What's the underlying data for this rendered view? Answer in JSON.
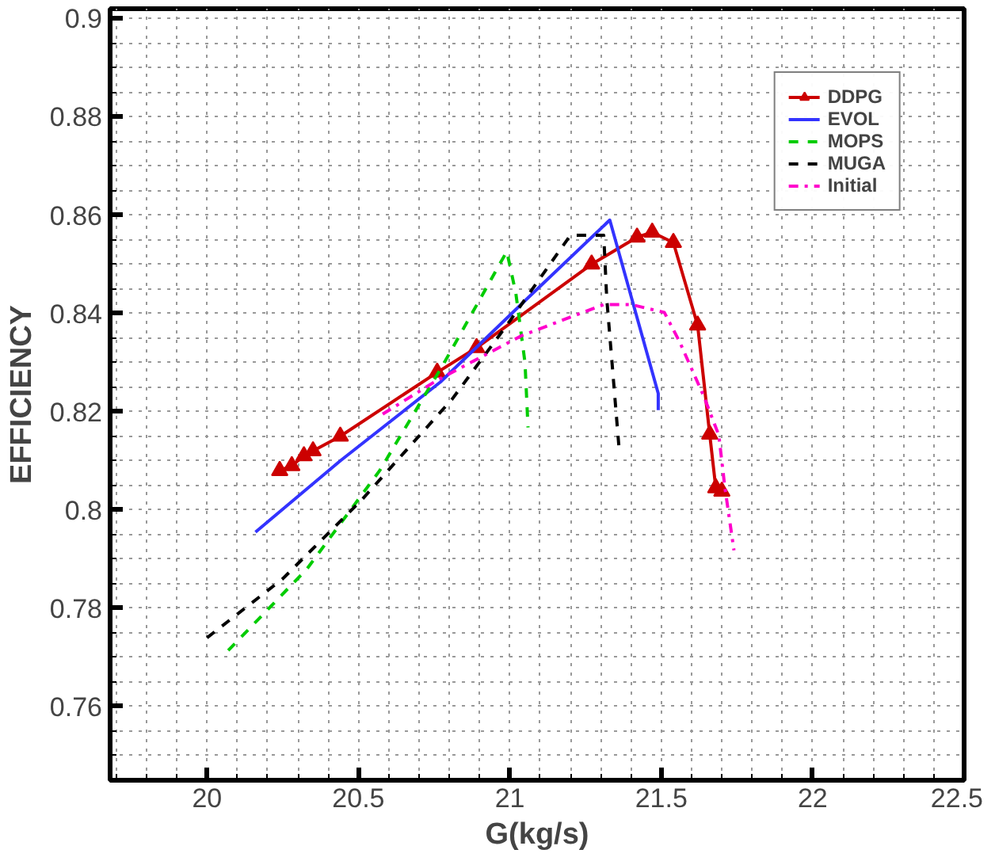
{
  "chart_data": {
    "type": "line",
    "xlabel": "G(kg/s)",
    "ylabel": "EFFICIENCY",
    "xlim": [
      19.68,
      22.5
    ],
    "ylim": [
      0.745,
      0.902
    ],
    "xticks": [
      20,
      20.5,
      21,
      21.5,
      22,
      22.5
    ],
    "yticks": [
      0.76,
      0.78,
      {
        "value": 0.8,
        "label": "0.8"
      },
      0.82,
      0.84,
      0.86,
      0.88,
      {
        "value": 0.9,
        "label": "0.9"
      }
    ],
    "grid": true,
    "legend": "top right",
    "series": [
      {
        "name": "DDPG",
        "color": "#cc0000",
        "marker": "triangle",
        "line_style": "solid",
        "x": [
          20.24,
          20.28,
          20.32,
          20.35,
          20.44,
          20.76,
          20.89,
          21.27,
          21.42,
          21.47,
          21.54,
          21.62,
          21.66,
          21.68,
          21.7
        ],
        "values": [
          0.808,
          0.809,
          0.811,
          0.812,
          0.815,
          0.828,
          0.833,
          0.85,
          0.8555,
          0.8565,
          0.8544,
          0.8376,
          0.8154,
          0.8045,
          0.8038
        ]
      },
      {
        "name": "EVOL",
        "color": "#3333ff",
        "marker": "none",
        "line_style": "solid",
        "x": [
          20.16,
          20.44,
          20.77,
          21.04,
          21.33,
          21.49,
          21.49
        ],
        "values": [
          0.7955,
          0.81,
          0.826,
          0.842,
          0.859,
          0.8237,
          0.8203
        ]
      },
      {
        "name": "MOPS",
        "color": "#00cc00",
        "marker": "none",
        "line_style": "dashed",
        "x": [
          20.07,
          20.33,
          20.57,
          20.78,
          20.99,
          21.02,
          21.05,
          21.06
        ],
        "values": [
          0.7714,
          0.788,
          0.808,
          0.8296,
          0.8526,
          0.844,
          0.83,
          0.8168
        ]
      },
      {
        "name": "MUGA",
        "color": "#000000",
        "marker": "none",
        "line_style": "dashed",
        "x": [
          20.0,
          20.25,
          20.51,
          20.81,
          20.99,
          21.2,
          21.31,
          21.32,
          21.36
        ],
        "values": [
          0.774,
          0.786,
          0.802,
          0.8226,
          0.8376,
          0.8559,
          0.8559,
          0.843,
          0.813
        ]
      },
      {
        "name": "Initial",
        "color": "#ff00cc",
        "marker": "none",
        "line_style": "dashdot",
        "x": [
          20.58,
          20.76,
          21.04,
          21.31,
          21.4,
          21.51,
          21.56,
          21.64,
          21.69,
          21.71,
          21.74
        ],
        "values": [
          0.8195,
          0.8264,
          0.8355,
          0.8418,
          0.8418,
          0.8402,
          0.8343,
          0.8232,
          0.8152,
          0.8046,
          0.7918
        ]
      }
    ]
  }
}
